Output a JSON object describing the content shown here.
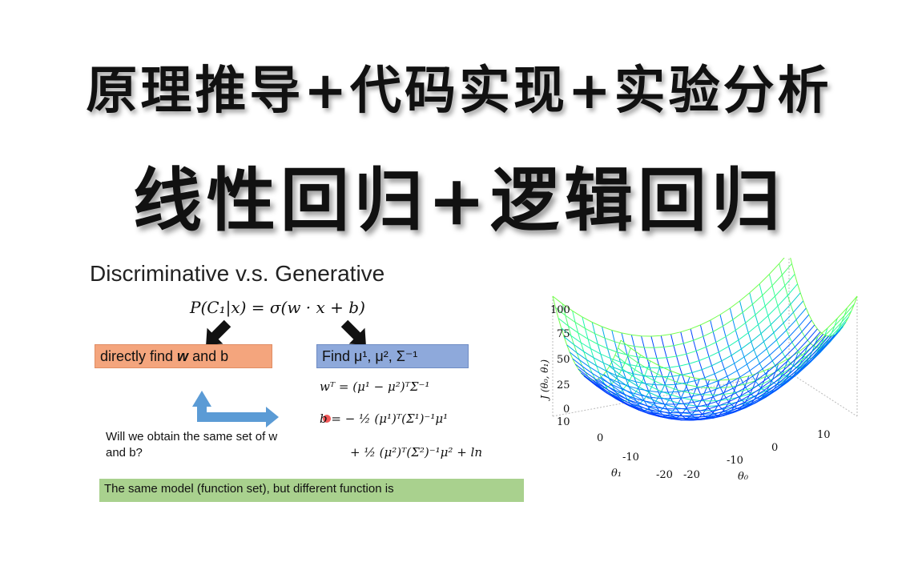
{
  "titles": {
    "line1": "原理推导+代码实现+实验分析",
    "line2": "线性回归+逻辑回归"
  },
  "slide": {
    "heading": "Discriminative v.s. Generative",
    "formula": "P(C₁|x) = σ(w · x + b)",
    "left_box": {
      "pre": "directly find ",
      "bold": "w",
      "post": " and b"
    },
    "right_box": "Find μ¹, μ², Σ⁻¹",
    "eq_wt": "wᵀ = (μ¹ − μ²)ᵀΣ⁻¹",
    "eq_b1": "b = − ½ (μ¹)ᵀ(Σ¹)⁻¹μ¹",
    "eq_b2": "+ ½ (μ²)ᵀ(Σ²)⁻¹μ² + ln",
    "question": "Will we obtain the same set of w and b?",
    "green_box": "The same model (function set), but different function is",
    "colors": {
      "orange": "#f4a57d",
      "blue": "#8ea9db",
      "green": "#a9d18e"
    }
  },
  "plot3d": {
    "zlabel": "J (θ₀, θ₁)",
    "z_ticks": [
      "100",
      "75",
      "50",
      "25",
      "0"
    ],
    "theta1_label": "θ₁",
    "theta0_label": "θ₀",
    "theta1_ticks": [
      "10",
      "0",
      "-10",
      "-20"
    ],
    "theta0_ticks": [
      "-20",
      "-10",
      "0",
      "10"
    ]
  }
}
